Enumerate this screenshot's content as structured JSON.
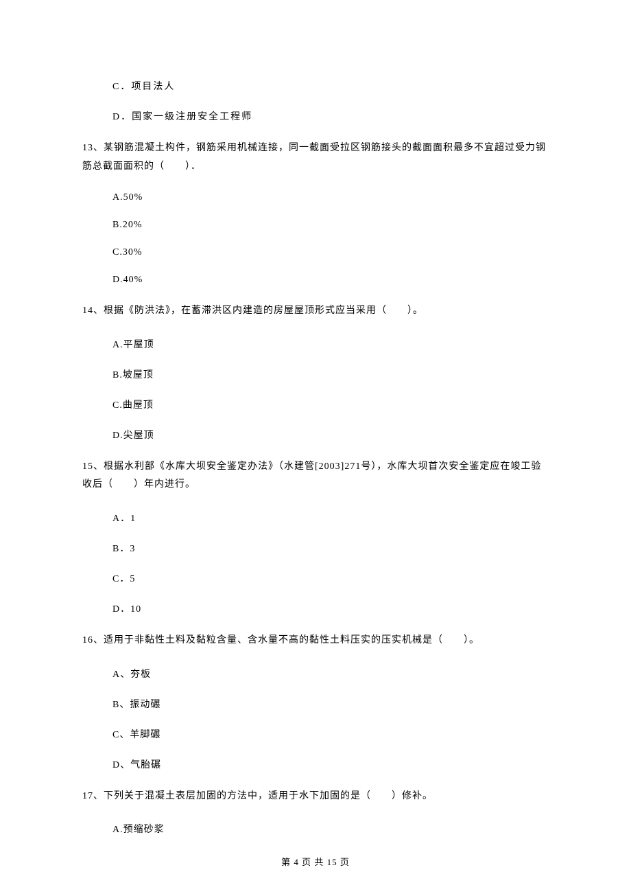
{
  "q12_partial": {
    "option_c": "C．项目法人",
    "option_d": "D．国家一级注册安全工程师"
  },
  "q13": {
    "text": "13、某钢筋混凝土构件，钢筋采用机械连接，同一截面受拉区钢筋接头的截面面积最多不宜超过受力钢筋总截面面积的（　　）．",
    "option_a": "A.50%",
    "option_b": "B.20%",
    "option_c": "C.30%",
    "option_d": "D.40%"
  },
  "q14": {
    "text": "14、根据《防洪法》，在蓄滞洪区内建造的房屋屋顶形式应当采用（　　）。",
    "option_a": "A.平屋顶",
    "option_b": "B.坡屋顶",
    "option_c": "C.曲屋顶",
    "option_d": "D.尖屋顶"
  },
  "q15": {
    "text": "15、根据水利部《水库大坝安全鉴定办法》（水建管[2003]271号），水库大坝首次安全鉴定应在竣工验收后（　　）年内进行。",
    "option_a": "A．1",
    "option_b": "B．3",
    "option_c": "C．5",
    "option_d": "D．10"
  },
  "q16": {
    "text": "16、适用于非黏性土料及黏粒含量、含水量不高的黏性土料压实的压实机械是（　　）。",
    "option_a": "A、夯板",
    "option_b": "B、振动碾",
    "option_c": "C、羊脚碾",
    "option_d": "D、气胎碾"
  },
  "q17": {
    "text": "17、下列关于混凝土表层加固的方法中，适用于水下加固的是（　　）修补。",
    "option_a": "A.预缩砂浆"
  },
  "footer": "第 4 页 共 15 页"
}
